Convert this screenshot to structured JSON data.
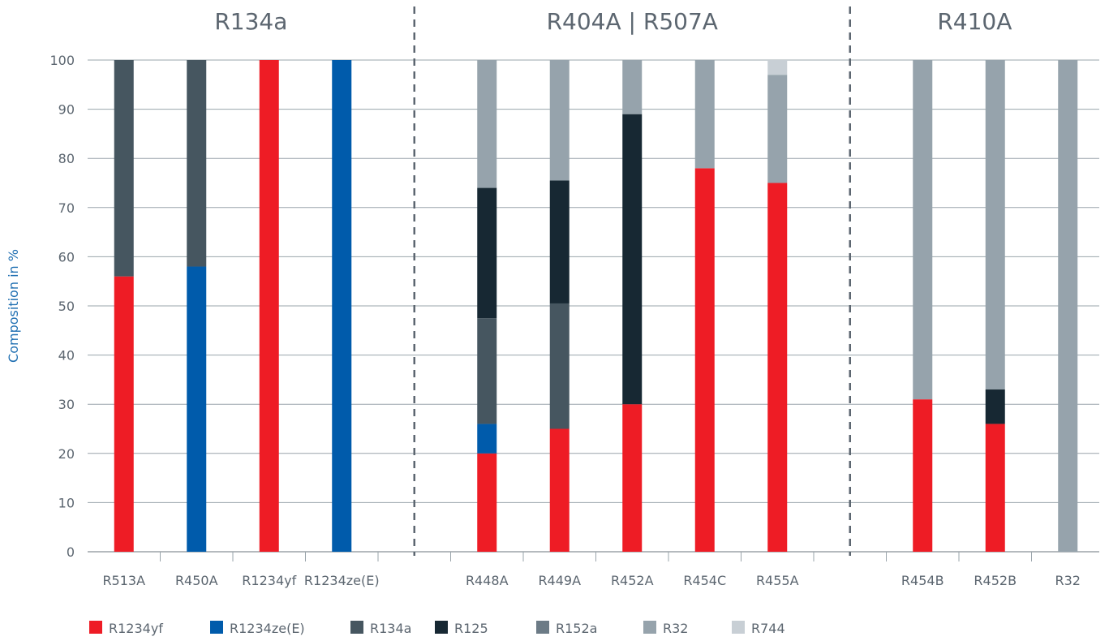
{
  "chart_data": {
    "type": "bar",
    "stacked": true,
    "ylabel": "Composition in %",
    "ylim": [
      0,
      100
    ],
    "yticks": [
      0,
      10,
      20,
      30,
      40,
      50,
      60,
      70,
      80,
      90,
      100
    ],
    "grid": true,
    "legend_position": "bottom",
    "groups": [
      {
        "title": "R134a",
        "categories": [
          "R513A",
          "R450A",
          "R1234yf",
          "R1234ze(E)"
        ]
      },
      {
        "title": "R404A | R507A",
        "categories": [
          "R448A",
          "R449A",
          "R452A",
          "R454C",
          "R455A"
        ]
      },
      {
        "title": "R410A",
        "categories": [
          "R454B",
          "R452B",
          "R32"
        ]
      }
    ],
    "categories": [
      "R513A",
      "R450A",
      "R1234yf",
      "R1234ze(E)",
      "R448A",
      "R449A",
      "R452A",
      "R454C",
      "R455A",
      "R454B",
      "R452B",
      "R32"
    ],
    "series": [
      {
        "name": "R1234yf",
        "color": "#ee1c25",
        "values": [
          56,
          0,
          100,
          0,
          20,
          25,
          30,
          78,
          75,
          31,
          26,
          0
        ]
      },
      {
        "name": "R1234ze(E)",
        "color": "#005bab",
        "values": [
          0,
          58,
          0,
          100,
          6,
          0,
          0,
          0,
          0,
          0,
          0,
          0
        ]
      },
      {
        "name": "R134a",
        "color": "#465660",
        "values": [
          44,
          42,
          0,
          0,
          21.5,
          25.5,
          0,
          0,
          0,
          0,
          0,
          0
        ]
      },
      {
        "name": "R125",
        "color": "#172833",
        "values": [
          0,
          0,
          0,
          0,
          26.5,
          25,
          59,
          0,
          0,
          0,
          7,
          0
        ]
      },
      {
        "name": "R152a",
        "color": "#6c7b86",
        "values": [
          0,
          0,
          0,
          0,
          0,
          0,
          0,
          0,
          0,
          0,
          0,
          0
        ]
      },
      {
        "name": "R32",
        "color": "#96a3ac",
        "values": [
          0,
          0,
          0,
          0,
          26,
          24.5,
          11,
          22,
          22,
          69,
          67,
          100
        ]
      },
      {
        "name": "R744",
        "color": "#c8cfd5",
        "values": [
          0,
          0,
          0,
          0,
          0,
          0,
          0,
          0,
          3,
          0,
          0,
          0
        ]
      }
    ]
  }
}
